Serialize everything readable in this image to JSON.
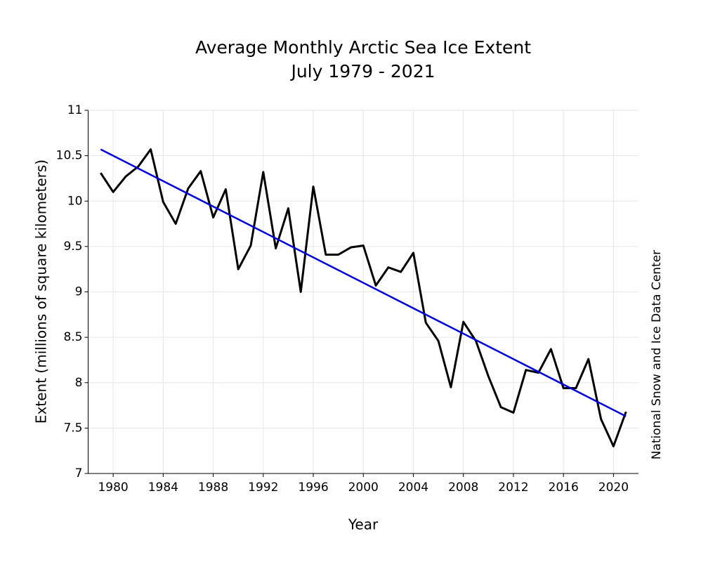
{
  "chart_data": {
    "type": "line",
    "title": "Average Monthly Arctic Sea Ice Extent",
    "subtitle": "July 1979 - 2021",
    "xlabel": "Year",
    "ylabel": "Extent (millions of square kilometers)",
    "annotation": "National Snow and Ice Data Center",
    "x": [
      1979,
      1980,
      1981,
      1982,
      1983,
      1984,
      1985,
      1986,
      1987,
      1988,
      1989,
      1990,
      1991,
      1992,
      1993,
      1994,
      1995,
      1996,
      1997,
      1998,
      1999,
      2000,
      2001,
      2002,
      2003,
      2004,
      2005,
      2006,
      2007,
      2008,
      2009,
      2010,
      2011,
      2012,
      2013,
      2014,
      2015,
      2016,
      2017,
      2018,
      2019,
      2020,
      2021
    ],
    "series": [
      {
        "color": "#000000",
        "values": [
          10.31,
          10.1,
          10.27,
          10.38,
          10.57,
          9.99,
          9.75,
          10.14,
          10.33,
          9.82,
          10.13,
          9.25,
          9.51,
          10.32,
          9.48,
          9.92,
          9.0,
          10.16,
          9.41,
          9.41,
          9.49,
          9.51,
          9.07,
          9.27,
          9.22,
          9.43,
          8.66,
          8.46,
          7.95,
          8.67,
          8.46,
          8.07,
          7.73,
          7.67,
          8.14,
          8.11,
          8.37,
          7.94,
          7.94,
          8.26,
          7.6,
          7.3,
          7.68
        ]
      }
    ],
    "trend": {
      "color": "#0000dd",
      "x": [
        1979,
        2021
      ],
      "values": [
        10.57,
        7.63
      ]
    },
    "xlim": [
      1978,
      2022
    ],
    "xticks": [
      1980,
      1984,
      1988,
      1992,
      1996,
      2000,
      2004,
      2008,
      2012,
      2016,
      2020
    ],
    "ylim": [
      7,
      11
    ],
    "yticks": [
      7,
      7.5,
      8,
      8.5,
      9,
      9.5,
      10,
      10.5,
      11
    ],
    "grid": true
  }
}
